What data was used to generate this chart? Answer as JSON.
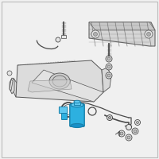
{
  "bg_color": "#f0f0f0",
  "border_color": "#bbbbbb",
  "line_color": "#4a4a4a",
  "highlight_color": "#2db0e0",
  "highlight_color2": "#60c8f0",
  "highlight_dark": "#1880aa",
  "part_fill": "#e5e5e5",
  "part_stroke": "#666666",
  "tank_fill": "#dcdcdc",
  "tank_stroke": "#555555",
  "tank_inner": "#cccccc",
  "skid_fill": "#d5d5d5",
  "skid_stroke": "#666666",
  "white": "#ffffff",
  "figsize": [
    2.0,
    2.0
  ],
  "dpi": 100
}
